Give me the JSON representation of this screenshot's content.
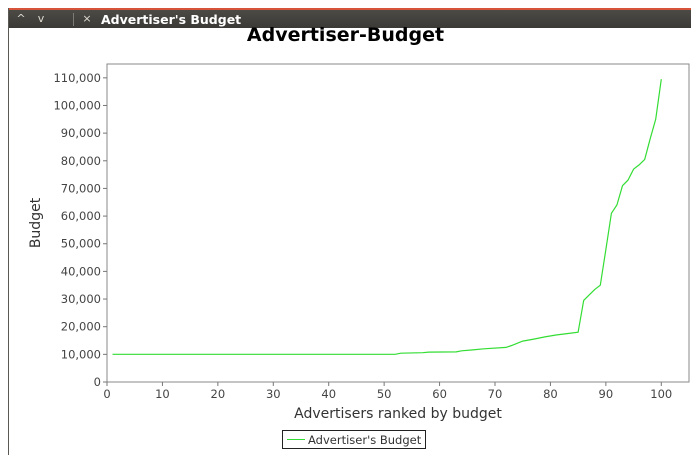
{
  "window": {
    "title": "Advertiser's Budget",
    "controls": {
      "minimize_glyph": "^",
      "maximize_glyph": "v",
      "close_glyph": "×"
    },
    "colors": {
      "titlebar": "#3c3b37",
      "accent": "#d7543a",
      "title_text": "#ffffff"
    }
  },
  "chart_data": {
    "type": "line",
    "title": "Advertiser-Budget",
    "xlabel": "Advertisers ranked by budget",
    "ylabel": "Budget",
    "xlim": [
      0,
      105
    ],
    "ylim": [
      0,
      115000
    ],
    "x_ticks": [
      0,
      10,
      20,
      30,
      40,
      50,
      60,
      70,
      80,
      90,
      100
    ],
    "x_tick_labels": [
      "0",
      "10",
      "20",
      "30",
      "40",
      "50",
      "60",
      "70",
      "80",
      "90",
      "100"
    ],
    "y_ticks": [
      0,
      10000,
      20000,
      30000,
      40000,
      50000,
      60000,
      70000,
      80000,
      90000,
      100000,
      110000
    ],
    "y_tick_labels": [
      "0",
      "10,000",
      "20,000",
      "30,000",
      "40,000",
      "50,000",
      "60,000",
      "70,000",
      "80,000",
      "90,000",
      "100,000",
      "110,000"
    ],
    "grid": false,
    "legend_position": "bottom-center",
    "series": [
      {
        "name": "Advertiser's Budget",
        "color": "#33dd33",
        "x": [
          1,
          52,
          53,
          57,
          58,
          63,
          64,
          66,
          68,
          72,
          73,
          75,
          77,
          79,
          81,
          83,
          85,
          86,
          87,
          88,
          89,
          90,
          91,
          92,
          93,
          94,
          95,
          96,
          97,
          98,
          99,
          100
        ],
        "y": [
          10000,
          10000,
          10400,
          10600,
          10800,
          10900,
          11300,
          11600,
          12000,
          12500,
          13200,
          14800,
          15500,
          16300,
          17000,
          17500,
          18000,
          29500,
          31500,
          33500,
          35000,
          48000,
          61000,
          64000,
          71000,
          73000,
          77000,
          78500,
          80500,
          88000,
          95000,
          109500
        ]
      }
    ]
  }
}
